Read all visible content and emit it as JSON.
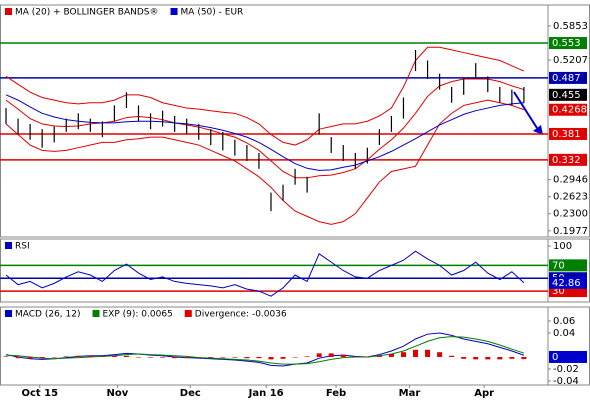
{
  "chart_data": [
    {
      "type": "ohlc",
      "xlim": [
        0,
        45.5
      ],
      "ylim": [
        0.186,
        0.625
      ],
      "yticks": [
        0.5853,
        0.5207,
        0.2946,
        0.2623,
        {
          "value": 0.23,
          "label": "0.2300"
        },
        0.1977
      ],
      "levels": [
        {
          "value": 0.553,
          "color": "#008000"
        },
        {
          "value": 0.487,
          "color": "#0000aa"
        },
        {
          "value": 0.381,
          "color": "#e00000"
        },
        {
          "value": 0.332,
          "color": "#e00000"
        }
      ],
      "markers": [
        {
          "value": 0.455,
          "color": "#000000"
        },
        {
          "value": 0.4268,
          "color": "#e00000"
        }
      ],
      "high": [
        0.43,
        0.41,
        0.4,
        0.39,
        0.395,
        0.41,
        0.42,
        0.41,
        0.405,
        0.435,
        0.46,
        0.435,
        0.42,
        0.425,
        0.415,
        0.41,
        0.4,
        0.39,
        0.385,
        0.37,
        0.36,
        0.345,
        0.27,
        0.285,
        0.315,
        0.3,
        0.42,
        0.375,
        0.36,
        0.345,
        0.355,
        0.39,
        0.415,
        0.45,
        0.54,
        0.52,
        0.495,
        0.47,
        0.485,
        0.515,
        0.49,
        0.47,
        0.465,
        0.47
      ],
      "low": [
        0.4,
        0.38,
        0.37,
        0.355,
        0.365,
        0.385,
        0.39,
        0.385,
        0.375,
        0.405,
        0.43,
        0.405,
        0.39,
        0.395,
        0.385,
        0.38,
        0.37,
        0.36,
        0.35,
        0.34,
        0.33,
        0.315,
        0.235,
        0.255,
        0.285,
        0.27,
        0.38,
        0.345,
        0.33,
        0.315,
        0.325,
        0.36,
        0.385,
        0.41,
        0.5,
        0.485,
        0.465,
        0.44,
        0.455,
        0.485,
        0.46,
        0.44,
        0.435,
        0.44
      ],
      "series": [
        {
          "name": "MA (20) + BOLLINGER BANDS®",
          "color": "#e00000",
          "values": [
            0.445,
            0.428,
            0.41,
            0.4,
            0.396,
            0.395,
            0.396,
            0.4,
            0.402,
            0.405,
            0.412,
            0.414,
            0.412,
            0.408,
            0.402,
            0.398,
            0.394,
            0.388,
            0.381,
            0.375,
            0.364,
            0.35,
            0.33,
            0.31,
            0.298,
            0.298,
            0.302,
            0.303,
            0.308,
            0.315,
            0.332,
            0.352,
            0.37,
            0.392,
            0.42,
            0.452,
            0.472,
            0.48,
            0.485,
            0.485,
            0.485,
            0.48,
            0.472,
            0.465
          ],
          "upper": [
            0.49,
            0.475,
            0.46,
            0.45,
            0.445,
            0.44,
            0.438,
            0.44,
            0.44,
            0.445,
            0.455,
            0.455,
            0.45,
            0.44,
            0.435,
            0.43,
            0.428,
            0.425,
            0.422,
            0.42,
            0.412,
            0.4,
            0.38,
            0.365,
            0.36,
            0.37,
            0.39,
            0.395,
            0.4,
            0.4,
            0.405,
            0.415,
            0.43,
            0.47,
            0.52,
            0.545,
            0.545,
            0.54,
            0.535,
            0.53,
            0.525,
            0.52,
            0.51,
            0.5
          ],
          "lower": [
            0.4,
            0.38,
            0.36,
            0.35,
            0.348,
            0.35,
            0.355,
            0.36,
            0.365,
            0.365,
            0.37,
            0.372,
            0.375,
            0.375,
            0.37,
            0.365,
            0.36,
            0.35,
            0.34,
            0.33,
            0.315,
            0.3,
            0.28,
            0.255,
            0.235,
            0.225,
            0.215,
            0.21,
            0.215,
            0.23,
            0.26,
            0.29,
            0.31,
            0.315,
            0.32,
            0.36,
            0.4,
            0.42,
            0.435,
            0.44,
            0.445,
            0.44,
            0.435,
            0.4268
          ]
        },
        {
          "name": "MA (50) - EUR",
          "color": "#0000cc",
          "values": [
            0.455,
            0.445,
            0.432,
            0.42,
            0.413,
            0.408,
            0.405,
            0.403,
            0.402,
            0.402,
            0.404,
            0.405,
            0.405,
            0.404,
            0.402,
            0.4,
            0.397,
            0.393,
            0.388,
            0.382,
            0.375,
            0.365,
            0.352,
            0.338,
            0.325,
            0.316,
            0.312,
            0.313,
            0.318,
            0.322,
            0.33,
            0.338,
            0.348,
            0.36,
            0.372,
            0.385,
            0.398,
            0.408,
            0.418,
            0.425,
            0.43,
            0.435,
            0.438,
            0.44
          ]
        }
      ]
    },
    {
      "type": "line",
      "xlim": [
        0,
        45.5
      ],
      "ylim": [
        13,
        111
      ],
      "yticks": [
        100
      ],
      "levels": [
        {
          "value": 70,
          "color": "#008000"
        },
        {
          "value": 50,
          "color": "#0000aa"
        },
        {
          "value": 30,
          "color": "#e00000"
        }
      ],
      "markers": [
        {
          "value": 42.86,
          "color": "#0000cc"
        }
      ],
      "series": [
        {
          "name": "RSI",
          "color": "#0000cc",
          "values": [
            55,
            40,
            45,
            35,
            42,
            52,
            60,
            55,
            45,
            62,
            72,
            58,
            48,
            52,
            45,
            42,
            40,
            38,
            35,
            40,
            33,
            30,
            22,
            35,
            55,
            45,
            88,
            75,
            62,
            52,
            50,
            62,
            70,
            78,
            92,
            80,
            70,
            55,
            62,
            75,
            58,
            48,
            60,
            42.86
          ]
        }
      ]
    },
    {
      "type": "line",
      "xlim": [
        0,
        45.5
      ],
      "ylim": [
        -0.0467,
        0.0833
      ],
      "yticks": [
        0.06,
        0.04,
        -0.02,
        -0.04
      ],
      "markers": [
        {
          "value": 0,
          "color": "#0000cc"
        }
      ],
      "xticks": [
        {
          "value": 3.3,
          "label": "Oct 15"
        },
        {
          "value": 9.75,
          "label": "Nov"
        },
        {
          "value": 15.8,
          "label": "Dec"
        },
        {
          "value": 22.1,
          "label": "Jan 16"
        },
        {
          "value": 27.9,
          "label": "Feb"
        },
        {
          "value": 34,
          "label": "Mar"
        },
        {
          "value": 40.2,
          "label": "Apr"
        }
      ],
      "series": [
        {
          "name": "MACD (26, 12)",
          "color": "#0000cc",
          "values": [
            0.004,
            0,
            -0.003,
            -0.004,
            -0.003,
            -0.001,
            0.001,
            0.002,
            0.002,
            0.004,
            0.006,
            0.005,
            0.003,
            0.002,
            0,
            -0.001,
            -0.002,
            -0.003,
            -0.004,
            -0.005,
            -0.007,
            -0.009,
            -0.014,
            -0.015,
            -0.012,
            -0.01,
            -0.002,
            0.002,
            0.003,
            0.001,
            0,
            0.004,
            0.01,
            0.018,
            0.03,
            0.038,
            0.04,
            0.036,
            0.03,
            0.026,
            0.022,
            0.016,
            0.01,
            0.0029
          ]
        },
        {
          "name": "EXP (9): 0.0065",
          "color": "#008000",
          "values": [
            0.003,
            0.002,
            0,
            -0.002,
            -0.003,
            -0.002,
            -0.001,
            0,
            0.001,
            0.002,
            0.004,
            0.005,
            0.004,
            0.003,
            0.002,
            0.001,
            -0.001,
            -0.002,
            -0.003,
            -0.004,
            -0.005,
            -0.007,
            -0.01,
            -0.012,
            -0.012,
            -0.011,
            -0.008,
            -0.004,
            -0.001,
            0,
            0,
            0.002,
            0.005,
            0.01,
            0.018,
            0.026,
            0.032,
            0.034,
            0.033,
            0.03,
            0.026,
            0.02,
            0.013,
            0.0065
          ]
        },
        {
          "name": "Divergence: -0.0036",
          "color": "#e00000",
          "type": "bar",
          "values": [
            0.001,
            -0.002,
            -0.003,
            -0.002,
            0,
            0.001,
            0.002,
            0.002,
            0.001,
            0.002,
            0.002,
            0,
            -0.001,
            -0.001,
            -0.002,
            -0.002,
            -0.001,
            -0.001,
            -0.001,
            -0.001,
            -0.002,
            -0.002,
            -0.004,
            -0.003,
            0,
            0.001,
            0.006,
            0.006,
            0.004,
            0.001,
            0,
            0.002,
            0.005,
            0.008,
            0.012,
            0.012,
            0.008,
            0.002,
            -0.003,
            -0.004,
            -0.004,
            -0.004,
            -0.003,
            -0.0036
          ]
        }
      ]
    }
  ]
}
